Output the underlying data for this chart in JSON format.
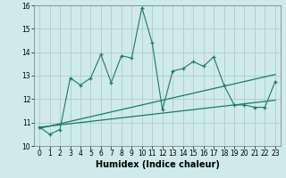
{
  "title": "",
  "xlabel": "Humidex (Indice chaleur)",
  "x": [
    0,
    1,
    2,
    3,
    4,
    5,
    6,
    7,
    8,
    9,
    10,
    11,
    12,
    13,
    14,
    15,
    16,
    17,
    18,
    19,
    20,
    21,
    22,
    23
  ],
  "y_main": [
    10.8,
    10.5,
    10.7,
    12.9,
    12.6,
    12.9,
    13.9,
    12.7,
    13.85,
    13.75,
    15.9,
    14.4,
    11.55,
    13.2,
    13.3,
    13.6,
    13.4,
    13.8,
    12.6,
    11.75,
    11.75,
    11.65,
    11.65,
    12.75
  ],
  "y_trend1_start": 10.8,
  "y_trend1_end": 11.95,
  "y_trend2_start": 10.75,
  "y_trend2_end": 13.05,
  "line_color": "#1a7a6e",
  "bg_color": "#ceeaea",
  "grid_color": "#b0cccc",
  "ylim": [
    10,
    16
  ],
  "xlim": [
    -0.5,
    23.5
  ],
  "yticks": [
    10,
    11,
    12,
    13,
    14,
    15,
    16
  ],
  "xticks": [
    0,
    1,
    2,
    3,
    4,
    5,
    6,
    7,
    8,
    9,
    10,
    11,
    12,
    13,
    14,
    15,
    16,
    17,
    18,
    19,
    20,
    21,
    22,
    23
  ],
  "tick_fontsize": 5.5,
  "xlabel_fontsize": 7
}
